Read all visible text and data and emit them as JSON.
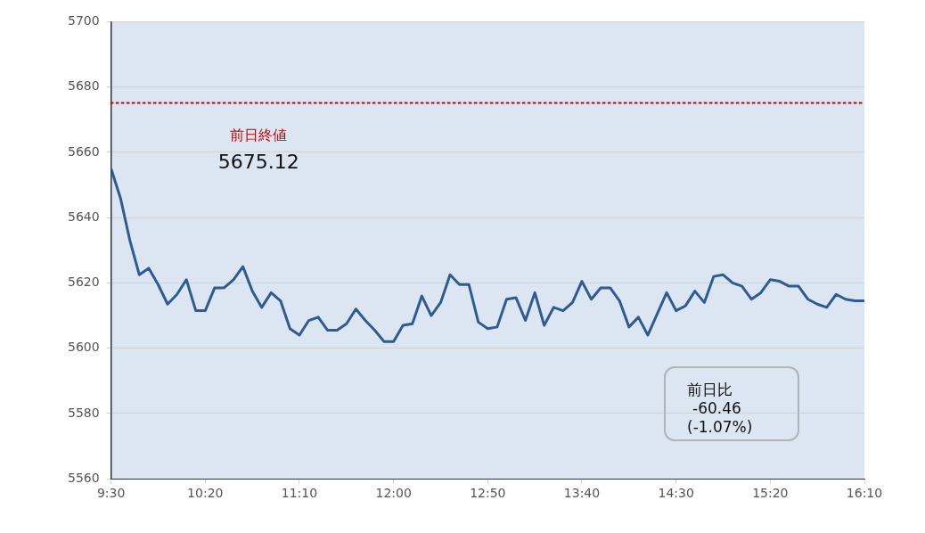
{
  "chart_data": {
    "type": "line",
    "xlim": [
      9.5,
      16.1667
    ],
    "xticks": [
      {
        "value": 9.5,
        "label": "9:30"
      },
      {
        "value": 10.3333,
        "label": "10:20"
      },
      {
        "value": 11.1667,
        "label": "11:10"
      },
      {
        "value": 12,
        "label": "12:00"
      },
      {
        "value": 12.8333,
        "label": "12:50"
      },
      {
        "value": 13.6667,
        "label": "13:40"
      },
      {
        "value": 14.5,
        "label": "14:30"
      },
      {
        "value": 15.3333,
        "label": "15:20"
      },
      {
        "value": 16.1667,
        "label": "16:10"
      }
    ],
    "ylim": [
      5560,
      5700
    ],
    "yticks": [
      5560,
      5580,
      5600,
      5620,
      5640,
      5660,
      5680,
      5700
    ],
    "grid": "y",
    "legend": false,
    "marker": "none",
    "line_style": "solid",
    "series": [
      {
        "color": "#2f5b8f",
        "x": [
          9.5,
          9.5833,
          9.6667,
          9.75,
          9.8333,
          9.9167,
          10,
          10.0833,
          10.1667,
          10.25,
          10.3333,
          10.4167,
          10.5,
          10.5833,
          10.6667,
          10.75,
          10.8333,
          10.9167,
          11,
          11.0833,
          11.1667,
          11.25,
          11.3333,
          11.4167,
          11.5,
          11.5833,
          11.6667,
          11.75,
          11.8333,
          11.9167,
          12,
          12.0833,
          12.1667,
          12.25,
          12.3333,
          12.4167,
          12.5,
          12.5833,
          12.6667,
          12.75,
          12.8333,
          12.9167,
          13,
          13.0833,
          13.1667,
          13.25,
          13.3333,
          13.4167,
          13.5,
          13.5833,
          13.6667,
          13.75,
          13.8333,
          13.9167,
          14,
          14.0833,
          14.1667,
          14.25,
          14.3333,
          14.4167,
          14.5,
          14.5833,
          14.6667,
          14.75,
          14.8333,
          14.9167,
          15,
          15.0833,
          15.1667,
          15.25,
          15.3333,
          15.4167,
          15.5,
          15.5833,
          15.6667,
          15.75,
          15.8333,
          15.9167,
          16,
          16.0833,
          16.1667
        ],
        "values": [
          5655,
          5646,
          5633,
          5622.5,
          5624.5,
          5619.5,
          5613.5,
          5616.5,
          5621,
          5611.5,
          5611.5,
          5618.5,
          5618.5,
          5621,
          5625,
          5617.5,
          5612.5,
          5617,
          5614.5,
          5606,
          5604,
          5608.5,
          5609.5,
          5605.5,
          5605.5,
          5607.5,
          5612,
          5608.5,
          5605.5,
          5602,
          5602,
          5607,
          5607.5,
          5616,
          5610,
          5614,
          5622.5,
          5619.5,
          5619.5,
          5608,
          5606,
          5606.5,
          5615,
          5615.5,
          5608.5,
          5617,
          5607,
          5612.5,
          5611.5,
          5614,
          5620.5,
          5615,
          5618.5,
          5618.5,
          5614.5,
          5606.5,
          5609.5,
          5604,
          5610.5,
          5617,
          5611.5,
          5613,
          5617.5,
          5614,
          5622,
          5622.5,
          5620,
          5619,
          5615,
          5617,
          5621,
          5620.5,
          5619,
          5619,
          5615,
          5613.5,
          5612.5,
          5616.5,
          5615,
          5614.5,
          5614.5
        ]
      }
    ],
    "ref_lines": [
      {
        "axis": "y",
        "value": 5675.12,
        "label": "前日終値",
        "color": "#c00000",
        "line_style": "dotted"
      }
    ],
    "annotations": [
      "5675.12",
      "前日比",
      "-60.46",
      "(-1.07%)"
    ]
  }
}
